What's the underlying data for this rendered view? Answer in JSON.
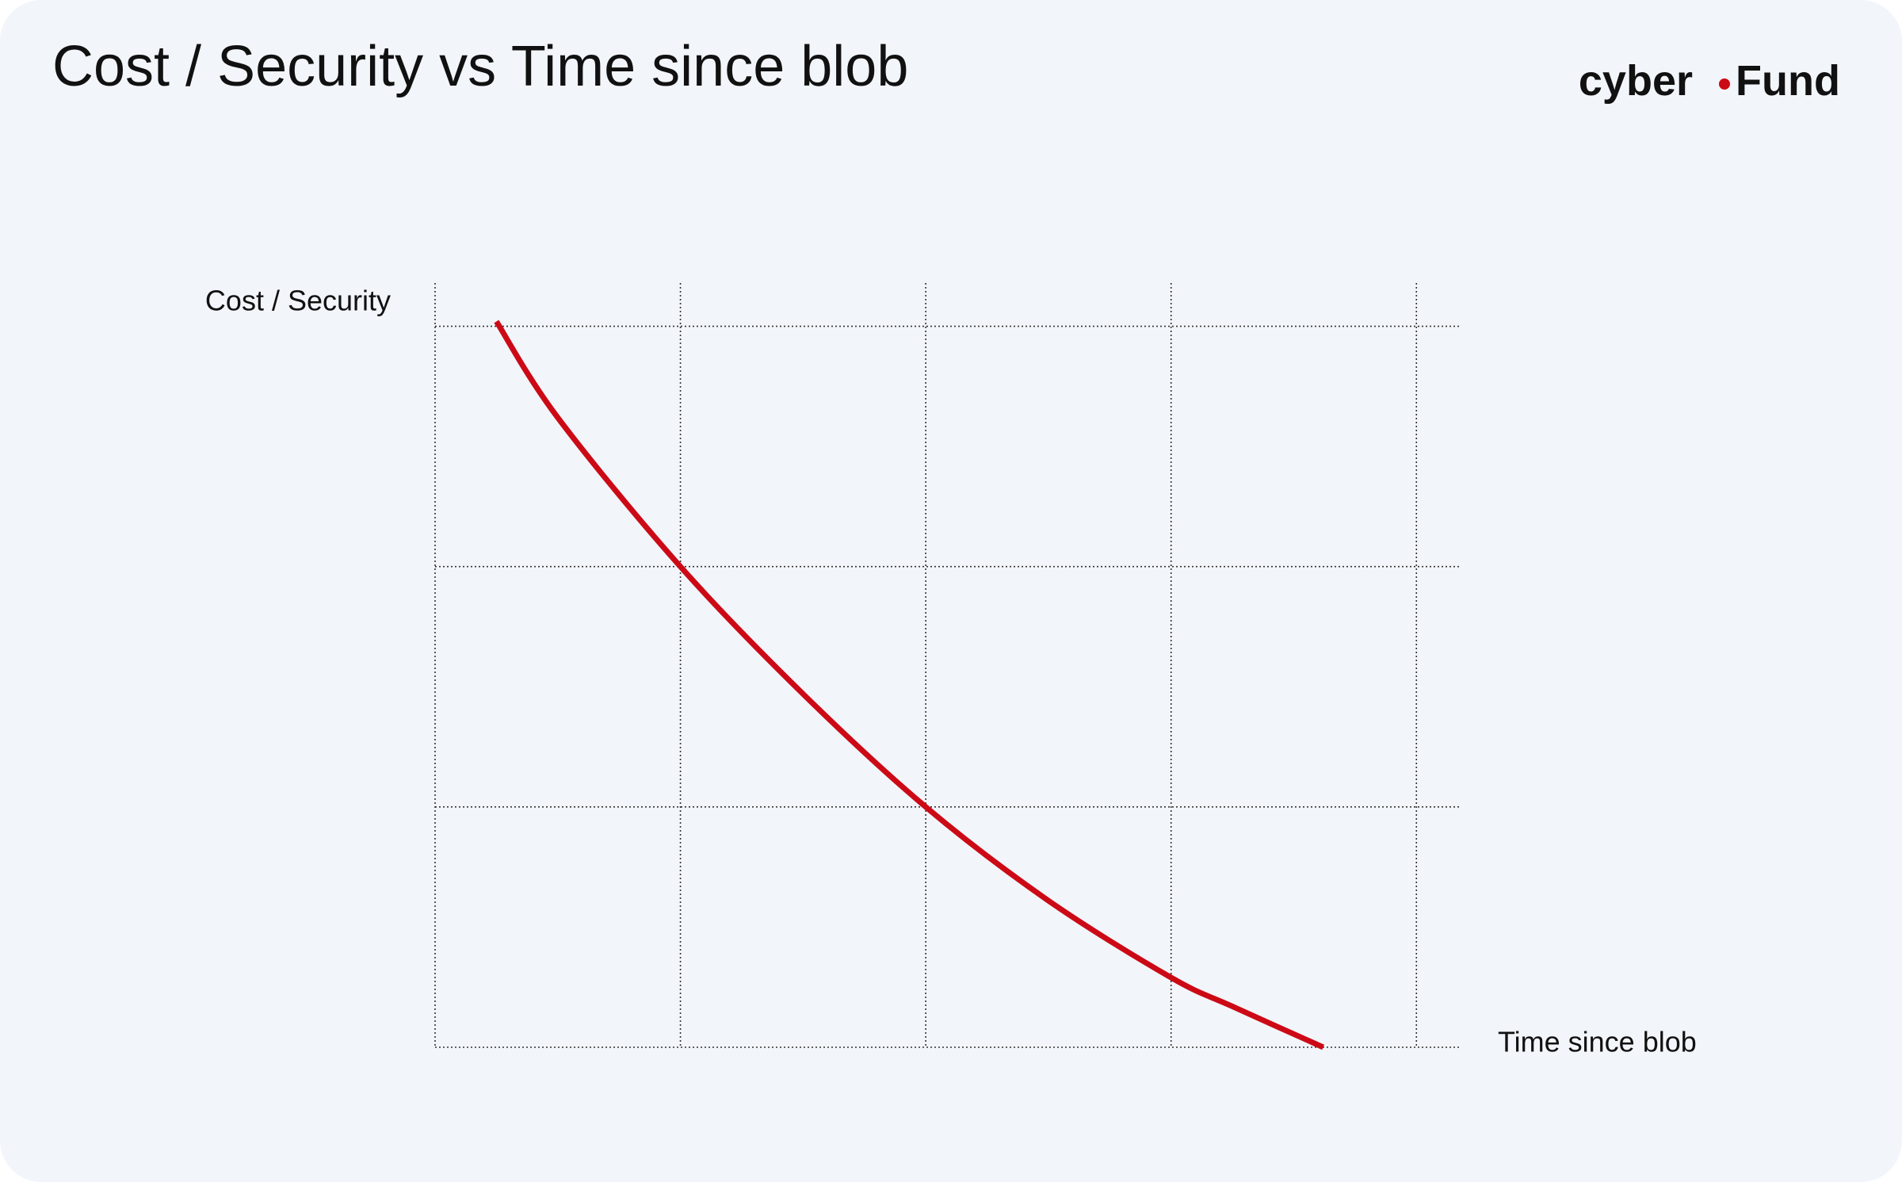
{
  "chart_data": {
    "type": "line",
    "title": "Cost / Security vs Time since blob",
    "logo": {
      "left": "cyber",
      "right": "Fund"
    },
    "x_label": "Time since blob",
    "y_label": "Cost / Security",
    "x": [
      0.25,
      0.5,
      1,
      1.5,
      2,
      2.5,
      3,
      3.25,
      3.62
    ],
    "series": [
      {
        "color": "#cc0a16",
        "values": [
          3.02,
          2.62,
          2.0,
          1.47,
          1.0,
          0.61,
          0.29,
          0.17,
          0.0
        ]
      }
    ],
    "xlim": [
      0,
      4.18
    ],
    "ylim": [
      0,
      3.18
    ],
    "xticks": [
      0,
      1,
      2,
      3,
      4
    ],
    "yticks": [
      0,
      1,
      2,
      3
    ],
    "grid": true
  }
}
